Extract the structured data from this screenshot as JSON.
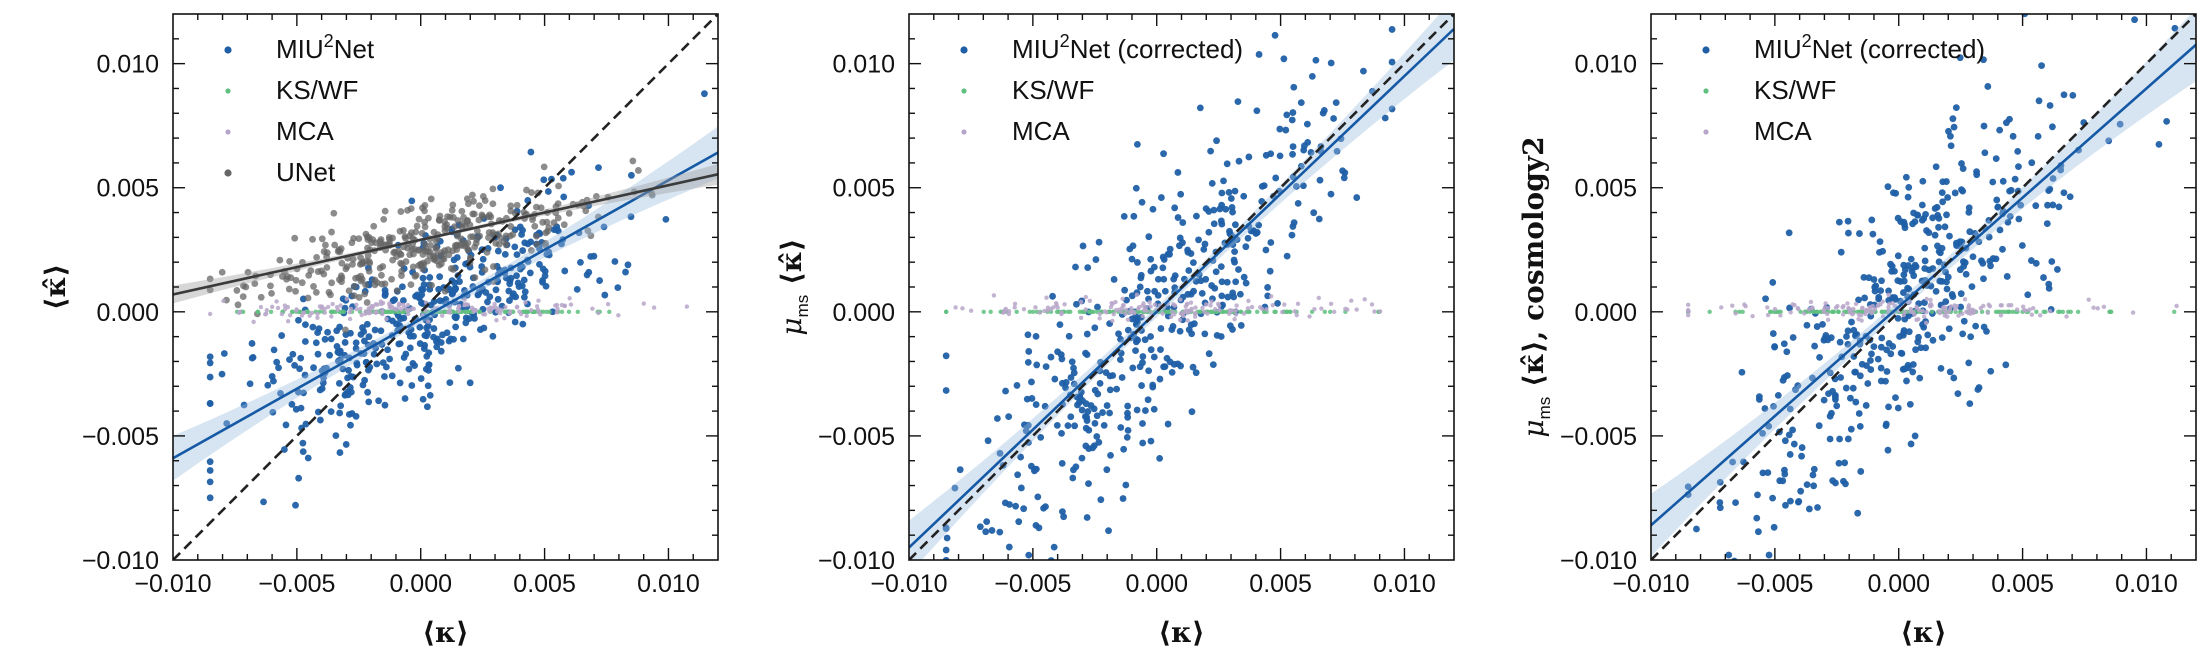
{
  "chart_data": [
    {
      "type": "scatter",
      "panel": "left",
      "xlabel": "⟨κ⟩",
      "ylabel": "⟨κ̂⟩",
      "xlim": [
        -0.01,
        0.012
      ],
      "ylim": [
        -0.01,
        0.012
      ],
      "xticks": [
        -0.01,
        -0.005,
        0.0,
        0.005,
        0.01
      ],
      "xtick_labels": [
        "−0.010",
        "−0.005",
        "0.000",
        "0.005",
        "0.010"
      ],
      "yticks": [
        -0.01,
        -0.005,
        0.0,
        0.005,
        0.01
      ],
      "ytick_labels": [
        "−0.010",
        "−0.005",
        "0.000",
        "0.005",
        "0.010"
      ],
      "identity_line": true,
      "series": [
        {
          "name": "MIU²Net",
          "color": "#1f5fa6",
          "n": 450,
          "slope": 0.55,
          "intercept": -0.0003,
          "spread": 0.0016,
          "x_range": [
            -0.0085,
            0.0115
          ],
          "fit": {
            "slope": 0.56,
            "intercept": -0.0003,
            "band": 0.0005
          }
        },
        {
          "name": "KS/WF",
          "color": "#5fbf7f",
          "n": 140,
          "slope": 0.0,
          "intercept": 0.0,
          "spread": 0.0,
          "x_range": [
            -0.0085,
            0.0115
          ]
        },
        {
          "name": "MCA",
          "color": "#b7a6c9",
          "n": 160,
          "slope": 0.006,
          "intercept": 0.0001,
          "spread": 0.0002,
          "x_range": [
            -0.0085,
            0.0115
          ]
        },
        {
          "name": "UNet",
          "color": "#666666",
          "n": 360,
          "slope": 0.24,
          "intercept": 0.0027,
          "spread": 0.0008,
          "x_range": [
            -0.0085,
            0.0095
          ],
          "fit": {
            "slope": 0.22,
            "intercept": 0.0029,
            "band": 0.0002
          }
        }
      ],
      "legend": {
        "placement": "top-left",
        "entries": [
          "MIU²Net",
          "KS/WF",
          "MCA",
          "UNet"
        ]
      }
    },
    {
      "type": "scatter",
      "panel": "middle",
      "xlabel": "⟨κ⟩",
      "ylabel": "μms ⟨κ̂⟩",
      "xlim": [
        -0.01,
        0.012
      ],
      "ylim": [
        -0.01,
        0.012
      ],
      "xticks": [
        -0.01,
        -0.005,
        0.0,
        0.005,
        0.01
      ],
      "xtick_labels": [
        "−0.010",
        "−0.005",
        "0.000",
        "0.005",
        "0.010"
      ],
      "yticks": [
        -0.01,
        -0.005,
        0.0,
        0.005,
        0.01
      ],
      "ytick_labels": [
        "−0.010",
        "−0.005",
        "0.000",
        "0.005",
        "0.010"
      ],
      "identity_line": true,
      "series": [
        {
          "name": "MIU²Net (corrected)",
          "color": "#1f5fa6",
          "n": 450,
          "slope": 0.96,
          "intercept": 0.0,
          "spread": 0.0027,
          "x_range": [
            -0.0085,
            0.0095
          ],
          "fit": {
            "slope": 0.95,
            "intercept": 0.0,
            "band": 0.0006
          }
        },
        {
          "name": "KS/WF",
          "color": "#5fbf7f",
          "n": 130,
          "slope": 0.0,
          "intercept": 0.0,
          "spread": 0.0,
          "x_range": [
            -0.0085,
            0.0095
          ]
        },
        {
          "name": "MCA",
          "color": "#b7a6c9",
          "n": 150,
          "slope": 0.006,
          "intercept": 0.0001,
          "spread": 0.0002,
          "x_range": [
            -0.0085,
            0.0095
          ]
        }
      ],
      "legend": {
        "placement": "top-left",
        "entries": [
          "MIU²Net (corrected)",
          "KS/WF",
          "MCA"
        ]
      }
    },
    {
      "type": "scatter",
      "panel": "right",
      "xlabel": "⟨κ⟩",
      "ylabel": "μms ⟨κ̂⟩, cosmology2",
      "xlim": [
        -0.01,
        0.012
      ],
      "ylim": [
        -0.01,
        0.012
      ],
      "xticks": [
        -0.01,
        -0.005,
        0.0,
        0.005,
        0.01
      ],
      "xtick_labels": [
        "−0.010",
        "−0.005",
        "0.000",
        "0.005",
        "0.010"
      ],
      "yticks": [
        -0.01,
        -0.005,
        0.0,
        0.005,
        0.01
      ],
      "ytick_labels": [
        "−0.010",
        "−0.005",
        "0.000",
        "0.005",
        "0.010"
      ],
      "identity_line": true,
      "series": [
        {
          "name": "MIU²Net (corrected)",
          "color": "#1f5fa6",
          "n": 450,
          "slope": 1.0,
          "intercept": 0.0,
          "spread": 0.0028,
          "x_range": [
            -0.0085,
            0.0115
          ],
          "fit": {
            "slope": 0.88,
            "intercept": 0.0002,
            "band": 0.0007
          }
        },
        {
          "name": "KS/WF",
          "color": "#5fbf7f",
          "n": 140,
          "slope": 0.0,
          "intercept": 0.0,
          "spread": 0.0,
          "x_range": [
            -0.0085,
            0.0115
          ]
        },
        {
          "name": "MCA",
          "color": "#b7a6c9",
          "n": 160,
          "slope": 0.006,
          "intercept": 0.0001,
          "spread": 0.0002,
          "x_range": [
            -0.0085,
            0.0115
          ]
        }
      ],
      "legend": {
        "placement": "top-left",
        "entries": [
          "MIU²Net (corrected)",
          "KS/WF",
          "MCA"
        ]
      }
    }
  ]
}
